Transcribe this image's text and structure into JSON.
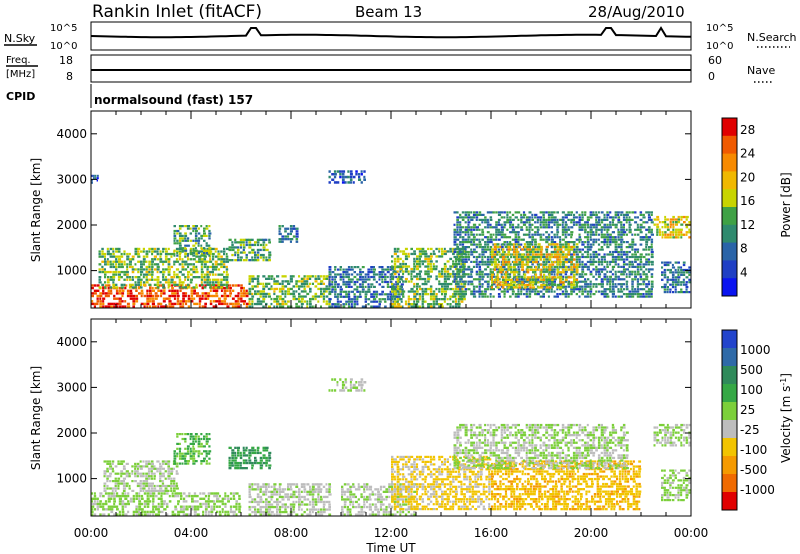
{
  "header": {
    "station": "Rankin Inlet (fitACF)",
    "beam": "Beam 13",
    "date": "28/Aug/2010"
  },
  "status_panels": {
    "nsky_label": "N.Sky",
    "nsearch_label": "N.Search",
    "nsky_ticks": [
      "10^5",
      "10^0"
    ],
    "nsearch_ticks": [
      "10^5",
      "10^0"
    ],
    "freq_label": "Freq.",
    "freq_unit": "[MHz]",
    "freq_ticks": [
      "18",
      "8"
    ],
    "nave_label": "Nave",
    "nave_ticks": [
      "60",
      "0"
    ],
    "cpid_label": "CPID",
    "cpid_value": "normalsound (fast) 157"
  },
  "x_axis": {
    "label": "Time UT",
    "ticks": [
      "00:00",
      "04:00",
      "08:00",
      "12:00",
      "16:00",
      "20:00",
      "00:00"
    ]
  },
  "chart_data": [
    {
      "type": "heatmap",
      "quantity": "Power",
      "ylabel": "Slant Range [km]",
      "yticks": [
        "1000",
        "2000",
        "3000",
        "4000"
      ],
      "ylim": [
        180,
        4500
      ],
      "xlim_hours": [
        0,
        24
      ],
      "colorbar": {
        "label": "Power [dB]",
        "ticks": [
          "4",
          "8",
          "12",
          "16",
          "20",
          "24",
          "28"
        ],
        "range": [
          0,
          30
        ],
        "colors": [
          "#0a14f0",
          "#1f3fc4",
          "#2a64a8",
          "#2f8a6e",
          "#3fa145",
          "#c8d400",
          "#f0b800",
          "#f78a00",
          "#f05a00",
          "#e00000"
        ]
      },
      "regions": [
        {
          "t": [
            0.0,
            6.3
          ],
          "r": [
            180,
            700
          ],
          "level": 26
        },
        {
          "t": [
            0.3,
            5.5
          ],
          "r": [
            600,
            1500
          ],
          "level": 14
        },
        {
          "t": [
            3.3,
            4.8
          ],
          "r": [
            1300,
            2000
          ],
          "level": 12
        },
        {
          "t": [
            5.5,
            7.2
          ],
          "r": [
            1200,
            1700
          ],
          "level": 12
        },
        {
          "t": [
            6.3,
            9.6
          ],
          "r": [
            180,
            900
          ],
          "level": 14
        },
        {
          "t": [
            7.5,
            8.3
          ],
          "r": [
            1600,
            2000
          ],
          "level": 8
        },
        {
          "t": [
            9.5,
            12.5
          ],
          "r": [
            180,
            1100
          ],
          "level": 8
        },
        {
          "t": [
            12.0,
            15.0
          ],
          "r": [
            180,
            1500
          ],
          "level": 14
        },
        {
          "t": [
            14.5,
            22.5
          ],
          "r": [
            400,
            2300
          ],
          "level": 10
        },
        {
          "t": [
            16.0,
            19.5
          ],
          "r": [
            600,
            1600
          ],
          "level": 18
        },
        {
          "t": [
            22.5,
            24.0
          ],
          "r": [
            1700,
            2200
          ],
          "level": 18
        },
        {
          "t": [
            22.8,
            24.0
          ],
          "r": [
            500,
            1200
          ],
          "level": 8
        },
        {
          "t": [
            9.5,
            11.0
          ],
          "r": [
            2900,
            3200
          ],
          "level": 6
        },
        {
          "t": [
            0.0,
            0.3
          ],
          "r": [
            2900,
            3100
          ],
          "level": 6
        }
      ]
    },
    {
      "type": "heatmap",
      "quantity": "Velocity",
      "ylabel": "Slant Range [km]",
      "yticks": [
        "1000",
        "2000",
        "3000",
        "4000"
      ],
      "ylim": [
        180,
        4500
      ],
      "xlim_hours": [
        0,
        24
      ],
      "colorbar": {
        "label": "Velocity [m s^-1]",
        "ticks": [
          "1000",
          "500",
          "100",
          "25",
          "-25",
          "-100",
          "-500",
          "-1000"
        ],
        "range": [
          -1200,
          1200
        ],
        "colors": [
          "#2244cc",
          "#2f6aa8",
          "#2f8a5a",
          "#35a845",
          "#7ccf3a",
          "#bdbdbd",
          "#f2c400",
          "#f59a00",
          "#f06a00",
          "#e00000"
        ]
      },
      "regions": [
        {
          "t": [
            0.0,
            6.0
          ],
          "r": [
            180,
            700
          ],
          "level": 60
        },
        {
          "t": [
            0.5,
            3.5
          ],
          "r": [
            700,
            1400
          ],
          "level": 0
        },
        {
          "t": [
            3.3,
            4.8
          ],
          "r": [
            1300,
            2000
          ],
          "level": 300
        },
        {
          "t": [
            5.5,
            7.2
          ],
          "r": [
            1200,
            1700
          ],
          "level": 500
        },
        {
          "t": [
            6.3,
            9.6
          ],
          "r": [
            180,
            900
          ],
          "level": -60
        },
        {
          "t": [
            10.0,
            13.0
          ],
          "r": [
            180,
            900
          ],
          "level": -60
        },
        {
          "t": [
            12.0,
            16.0
          ],
          "r": [
            300,
            1500
          ],
          "level": -300
        },
        {
          "t": [
            16.0,
            22.0
          ],
          "r": [
            300,
            1400
          ],
          "level": -400
        },
        {
          "t": [
            14.5,
            21.5
          ],
          "r": [
            1200,
            2200
          ],
          "level": 0
        },
        {
          "t": [
            22.5,
            24.0
          ],
          "r": [
            1700,
            2200
          ],
          "level": 0
        },
        {
          "t": [
            22.8,
            24.0
          ],
          "r": [
            500,
            1200
          ],
          "level": 60
        },
        {
          "t": [
            9.5,
            11.0
          ],
          "r": [
            2900,
            3200
          ],
          "level": 0
        }
      ]
    }
  ]
}
